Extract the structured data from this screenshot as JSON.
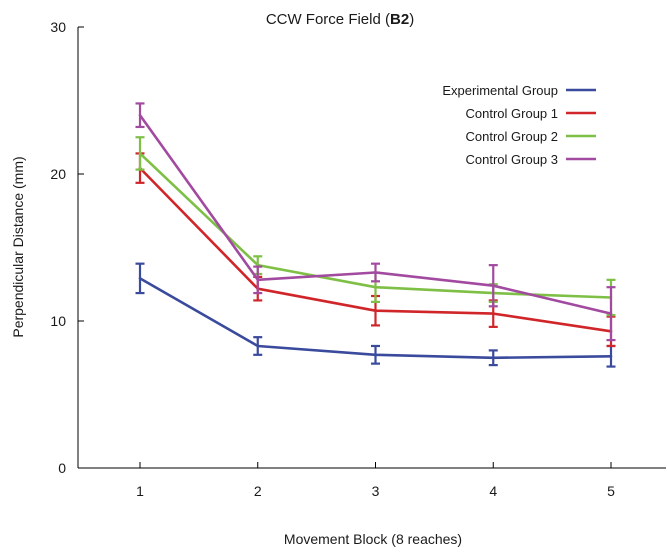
{
  "chart_data": {
    "type": "line",
    "title_prefix": "CCW Force Field (",
    "title_bold": "B2",
    "title_suffix": ")",
    "xlabel": "Movement Block (8 reaches)",
    "ylabel": "Perpendicular Distance (mm)",
    "x": [
      1,
      2,
      3,
      4,
      5
    ],
    "x_tick_labels": [
      "1",
      "2",
      "3",
      "4",
      "5"
    ],
    "ylim": [
      0,
      30
    ],
    "y_ticks": [
      0,
      10,
      20,
      30
    ],
    "y_tick_labels": [
      "0",
      "10",
      "20",
      "30"
    ],
    "grid": false,
    "legend_position": "top-right",
    "series": [
      {
        "name": "Experimental Group",
        "color": "#3a4a9c",
        "values": [
          12.9,
          8.3,
          7.7,
          7.5,
          7.6
        ],
        "errors": [
          1.0,
          0.6,
          0.6,
          0.5,
          0.7
        ]
      },
      {
        "name": "Control Group 1",
        "color": "#d0262a",
        "values": [
          20.4,
          12.2,
          10.7,
          10.5,
          9.3
        ],
        "errors": [
          1.0,
          0.8,
          1.0,
          0.9,
          1.0
        ]
      },
      {
        "name": "Control Group 2",
        "color": "#7ebf45",
        "values": [
          21.4,
          13.8,
          12.3,
          11.9,
          11.6
        ],
        "errors": [
          1.1,
          0.6,
          1.0,
          0.6,
          1.2
        ]
      },
      {
        "name": "Control Group 3",
        "color": "#a24aa0",
        "values": [
          24.0,
          12.8,
          13.3,
          12.4,
          10.5
        ],
        "errors": [
          0.8,
          0.9,
          0.6,
          1.4,
          1.8
        ]
      }
    ]
  }
}
